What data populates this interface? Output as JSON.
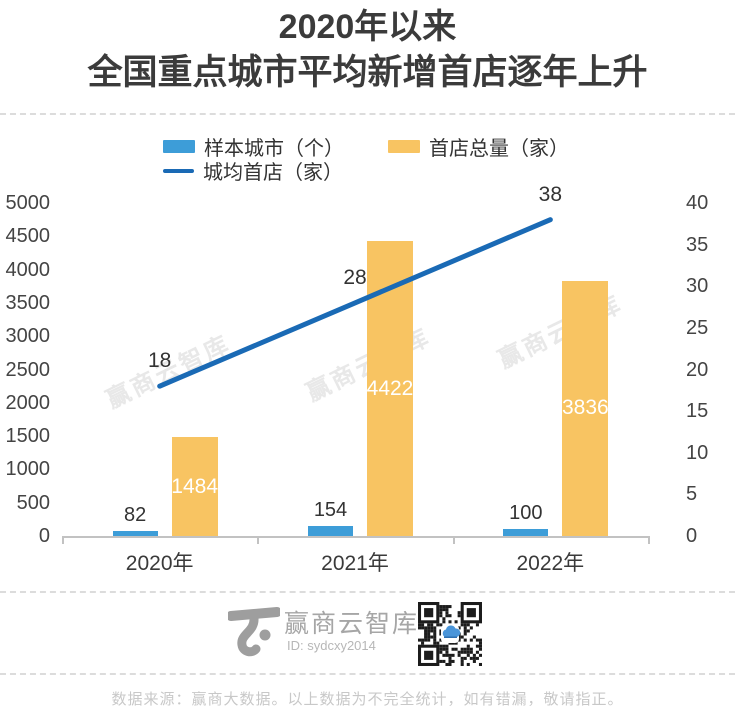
{
  "title": {
    "line1": "2020年以来",
    "line2": "全国重点城市平均新增首店逐年上升"
  },
  "legend": [
    {
      "label": "样本城市（个）",
      "type": "bar",
      "color": "#3d9dd8"
    },
    {
      "label": "首店总量（家）",
      "type": "bar",
      "color": "#f8c462"
    },
    {
      "label": "城均首店（家）",
      "type": "line",
      "color": "#1a6ab5"
    }
  ],
  "chart_data": {
    "type": "bar+line combo",
    "categories": [
      "2020年",
      "2021年",
      "2022年"
    ],
    "series": [
      {
        "name": "样本城市（个）",
        "type": "bar",
        "axis": "left",
        "color": "#3d9dd8",
        "values": [
          82,
          154,
          100
        ]
      },
      {
        "name": "首店总量（家）",
        "type": "bar",
        "axis": "left",
        "color": "#f8c462",
        "values": [
          1484,
          4422,
          3836
        ]
      },
      {
        "name": "城均首店（家）",
        "type": "line",
        "axis": "right",
        "color": "#1a6ab5",
        "values": [
          18,
          28,
          38
        ]
      }
    ],
    "left_axis": {
      "min": 0,
      "max": 5000,
      "step": 500,
      "ticks": [
        "5000",
        "4500",
        "4000",
        "3500",
        "3000",
        "2500",
        "2000",
        "1500",
        "1000",
        "500",
        "0"
      ]
    },
    "right_axis": {
      "min": 0,
      "max": 40,
      "step": 5,
      "ticks": [
        "40",
        "35",
        "30",
        "25",
        "20",
        "15",
        "10",
        "5",
        "0"
      ]
    },
    "grid": false,
    "legend_position": "top",
    "data_labels": true
  },
  "watermark": {
    "text": "赢商云智库"
  },
  "footer": {
    "brand": "赢商云智库",
    "id": "ID: sydcxy2014",
    "qr": "wechat-qr-code"
  },
  "note": "数据来源：赢商大数据。以上数据为不完全统计，如有错漏，敬请指正。"
}
